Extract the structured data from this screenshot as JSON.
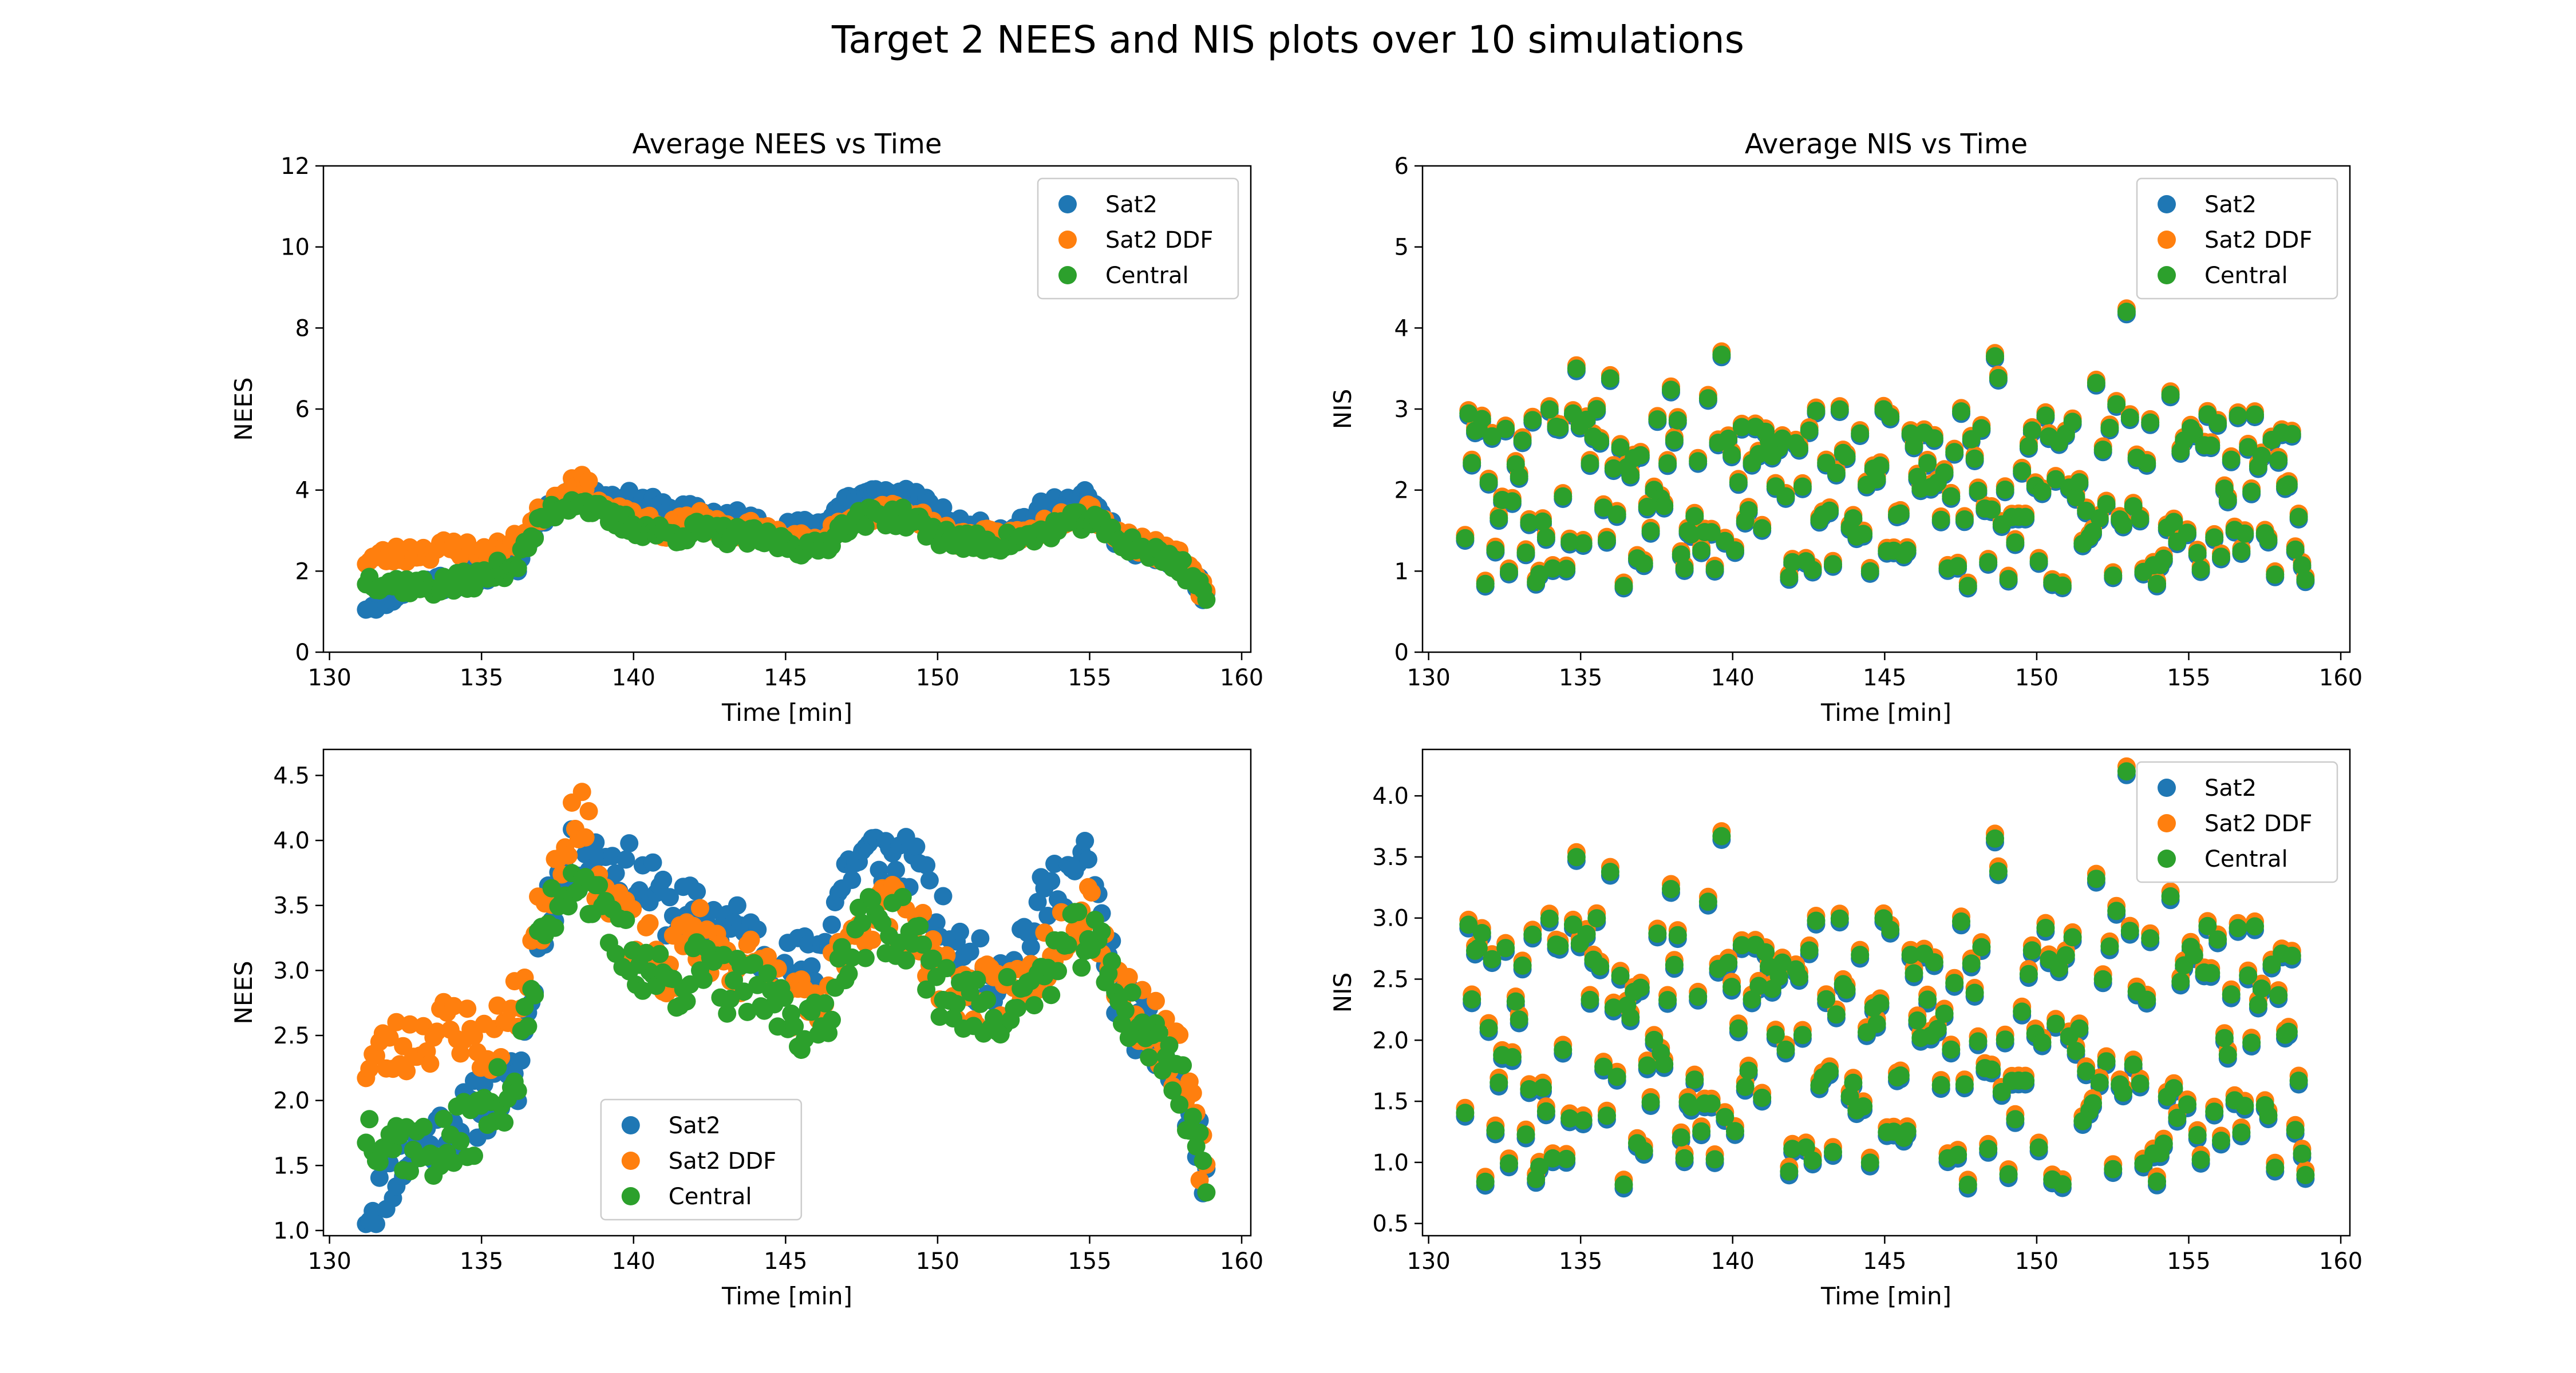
{
  "figure": {
    "title": "Target 2 NEES and NIS plots over 10 simulations"
  },
  "colors": {
    "Sat2": "#1f77b4",
    "Sat2 DDF": "#ff7f0e",
    "Central": "#2ca02c"
  },
  "chart_data": [
    {
      "type": "scatter",
      "title": "Average NEES vs Time",
      "xlabel": "Time [min]",
      "ylabel": "NEES",
      "xlim": [
        129.8,
        160.3
      ],
      "ylim": [
        0,
        12
      ],
      "xticks": [
        130,
        135,
        140,
        145,
        150,
        155,
        160
      ],
      "yticks": [
        0,
        2,
        4,
        6,
        8,
        10,
        12
      ],
      "ytick_labels": [
        "0",
        "2",
        "4",
        "6",
        "8",
        "10",
        "12"
      ],
      "legend": "top-right",
      "metric": "nees",
      "series": [
        {
          "name": "Sat2",
          "seed": 11,
          "x_step": 0.111,
          "y_anchor": [
            1.15,
            1.48,
            1.7,
            1.8,
            2.0,
            2.1,
            3.5,
            3.9,
            3.85,
            3.7,
            3.5,
            3.4,
            3.35,
            3.2,
            3.0,
            3.1,
            3.8,
            3.9,
            3.85,
            3.4,
            3.0,
            3.0,
            3.3,
            3.7,
            3.8,
            2.8,
            2.5,
            2.1,
            1.4
          ]
        },
        {
          "name": "Sat2 DDF",
          "seed": 23,
          "x_step": 0.111,
          "y_anchor": [
            2.3,
            2.4,
            2.5,
            2.6,
            2.4,
            2.7,
            3.6,
            4.3,
            3.5,
            3.2,
            3.0,
            3.3,
            3.1,
            3.0,
            2.8,
            2.6,
            3.3,
            3.5,
            3.4,
            3.0,
            2.8,
            2.8,
            2.9,
            3.3,
            3.6,
            2.9,
            2.6,
            2.3,
            1.35
          ]
        },
        {
          "name": "Central",
          "seed": 37,
          "x_step": 0.111,
          "y_anchor": [
            1.8,
            1.7,
            1.6,
            1.7,
            1.9,
            2.2,
            3.4,
            3.8,
            3.3,
            3.1,
            2.9,
            3.0,
            2.9,
            2.8,
            2.7,
            2.5,
            3.2,
            3.4,
            3.3,
            2.9,
            2.7,
            2.7,
            2.8,
            3.1,
            3.3,
            2.8,
            2.5,
            2.2,
            1.4
          ]
        }
      ]
    },
    {
      "type": "scatter",
      "title": "Average NIS vs Time",
      "xlabel": "Time [min]",
      "ylabel": "NIS",
      "xlim": [
        129.8,
        160.3
      ],
      "ylim": [
        0,
        6
      ],
      "xticks": [
        130,
        135,
        140,
        145,
        150,
        155,
        160
      ],
      "yticks": [
        0,
        1,
        2,
        3,
        4,
        5,
        6
      ],
      "ytick_labels": [
        "0",
        "1",
        "2",
        "3",
        "4",
        "5",
        "6"
      ],
      "legend": "top-right",
      "metric": "nis",
      "series": [
        {
          "name": "Sat2",
          "seed": 101,
          "x_step": 0.111
        },
        {
          "name": "Sat2 DDF",
          "seed": 101,
          "x_step": 0.111
        },
        {
          "name": "Central",
          "seed": 101,
          "x_step": 0.111
        }
      ]
    },
    {
      "type": "scatter",
      "title": "",
      "xlabel": "Time [min]",
      "ylabel": "NEES",
      "xlim": [
        129.8,
        160.3
      ],
      "ylim": [
        0.96,
        4.7
      ],
      "xticks": [
        130,
        135,
        140,
        145,
        150,
        155,
        160
      ],
      "yticks": [
        1.0,
        1.5,
        2.0,
        2.5,
        3.0,
        3.5,
        4.0,
        4.5
      ],
      "ytick_labels": [
        "1.0",
        "1.5",
        "2.0",
        "2.5",
        "3.0",
        "3.5",
        "4.0",
        "4.5"
      ],
      "legend": "bottom-center",
      "metric": "nees",
      "series": [
        {
          "name": "Sat2",
          "seed": 11,
          "x_step": 0.111
        },
        {
          "name": "Sat2 DDF",
          "seed": 23,
          "x_step": 0.111
        },
        {
          "name": "Central",
          "seed": 37,
          "x_step": 0.111
        }
      ]
    },
    {
      "type": "scatter",
      "title": "",
      "xlabel": "Time [min]",
      "ylabel": "NIS",
      "xlim": [
        129.8,
        160.3
      ],
      "ylim": [
        0.4,
        4.38
      ],
      "xticks": [
        130,
        135,
        140,
        145,
        150,
        155,
        160
      ],
      "yticks": [
        0.5,
        1.0,
        1.5,
        2.0,
        2.5,
        3.0,
        3.5,
        4.0
      ],
      "ytick_labels": [
        "0.5",
        "1.0",
        "1.5",
        "2.0",
        "2.5",
        "3.0",
        "3.5",
        "4.0"
      ],
      "legend": "top-right",
      "metric": "nis",
      "series": [
        {
          "name": "Sat2",
          "seed": 101,
          "x_step": 0.111
        },
        {
          "name": "Sat2 DDF",
          "seed": 101,
          "x_step": 0.111
        },
        {
          "name": "Central",
          "seed": 101,
          "x_step": 0.111
        }
      ]
    }
  ]
}
